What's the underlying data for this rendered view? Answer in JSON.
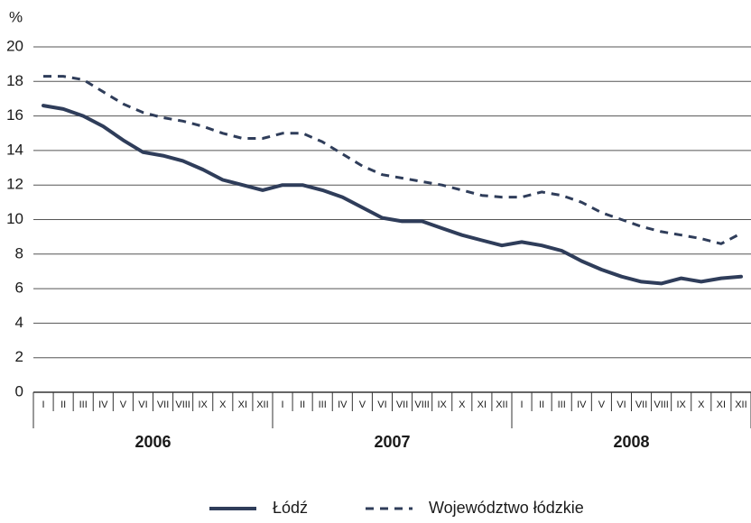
{
  "chart_data": {
    "type": "line",
    "y_label": "%",
    "categories": [
      "I",
      "II",
      "III",
      "IV",
      "V",
      "VI",
      "VII",
      "VIII",
      "IX",
      "X",
      "XI",
      "XII",
      "I",
      "II",
      "III",
      "IV",
      "V",
      "VI",
      "VII",
      "VIII",
      "IX",
      "X",
      "XI",
      "XII",
      "I",
      "II",
      "III",
      "IV",
      "V",
      "VI",
      "VII",
      "VIII",
      "IX",
      "X",
      "XI",
      "XII"
    ],
    "year_groups": [
      "2006",
      "2007",
      "2008"
    ],
    "series": [
      {
        "name": "Łódź",
        "color": "#2f3d5a",
        "style": "solid",
        "values": [
          16.6,
          16.4,
          16.0,
          15.4,
          14.6,
          13.9,
          13.7,
          13.4,
          12.9,
          12.3,
          12.0,
          11.7,
          12.0,
          12.0,
          11.7,
          11.3,
          10.7,
          10.1,
          9.9,
          9.9,
          9.5,
          9.1,
          8.8,
          8.5,
          8.7,
          8.5,
          8.2,
          7.6,
          7.1,
          6.7,
          6.4,
          6.3,
          6.6,
          6.4,
          6.6,
          6.7
        ]
      },
      {
        "name": "Województwo łódzkie",
        "color": "#2f3d5a",
        "style": "dashed",
        "values": [
          18.3,
          18.3,
          18.1,
          17.4,
          16.7,
          16.2,
          15.9,
          15.7,
          15.4,
          15.0,
          14.7,
          14.7,
          15.0,
          15.0,
          14.5,
          13.8,
          13.1,
          12.6,
          12.4,
          12.2,
          12.0,
          11.7,
          11.4,
          11.3,
          11.3,
          11.6,
          11.4,
          11.0,
          10.4,
          10.0,
          9.6,
          9.3,
          9.1,
          8.9,
          8.6,
          9.2
        ]
      }
    ],
    "ylim": [
      0,
      20
    ],
    "yticks": [
      0,
      2,
      4,
      6,
      8,
      10,
      12,
      14,
      16,
      18,
      20
    ],
    "grid": true,
    "legend": "bottom"
  }
}
